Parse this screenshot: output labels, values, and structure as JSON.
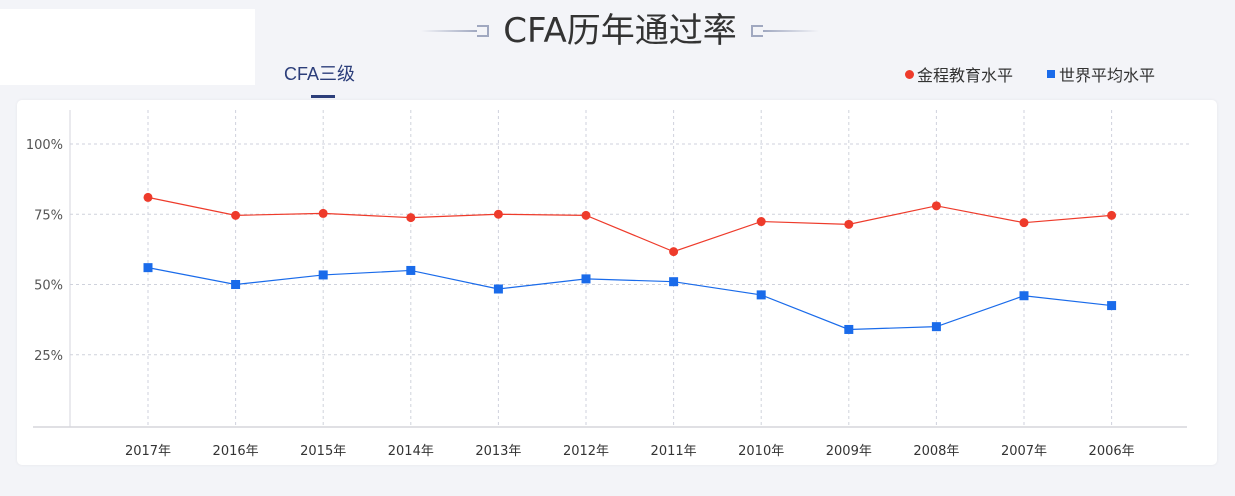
{
  "header": {
    "title": "CFA历年通过率",
    "active_tab": "CFA三级"
  },
  "legend": {
    "items": [
      {
        "label": "金程教育水平",
        "color": "#ee3b2b",
        "marker": "circle"
      },
      {
        "label": "世界平均水平",
        "color": "#1a6bea",
        "marker": "square"
      }
    ]
  },
  "chart_data": {
    "type": "line",
    "title": "CFA历年通过率",
    "subtitle": "CFA三级",
    "xlabel": "",
    "ylabel": "",
    "categories": [
      "2017年",
      "2016年",
      "2015年",
      "2014年",
      "2013年",
      "2012年",
      "2011年",
      "2010年",
      "2009年",
      "2008年",
      "2007年",
      "2006年"
    ],
    "series": [
      {
        "name": "金程教育水平",
        "color": "#ee3b2b",
        "marker": "circle",
        "values": [
          81,
          74.6,
          75.3,
          73.8,
          75,
          74.6,
          61.7,
          72.4,
          71.4,
          78,
          72,
          74.6
        ]
      },
      {
        "name": "世界平均水平",
        "color": "#1a6bea",
        "marker": "square",
        "values": [
          56,
          50,
          53.4,
          55,
          48.4,
          52,
          51,
          46.3,
          34,
          35,
          46,
          42.5
        ]
      }
    ],
    "yticks": [
      "25%",
      "50%",
      "75%",
      "100%"
    ],
    "ylim": [
      0,
      100
    ],
    "grid": true,
    "legend_position": "top-right"
  }
}
